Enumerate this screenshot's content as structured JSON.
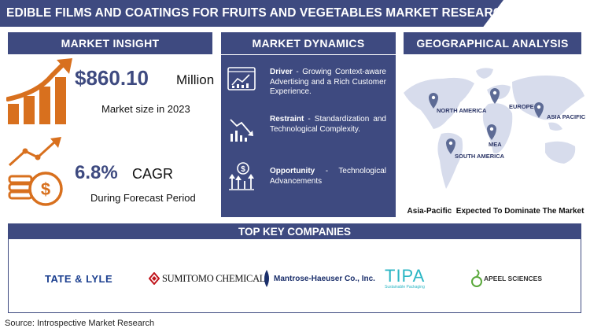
{
  "title": "EDIBLE FILMS AND COATINGS FOR FRUITS AND VEGETABLES MARKET RESEARCH REPORT",
  "insight": {
    "header": "MARKET INSIGHT",
    "market_value": "$860.10",
    "market_unit": "Million",
    "market_caption": "Market size in 2023",
    "cagr_value": "6.8%",
    "cagr_label": "CAGR",
    "cagr_caption": "During Forecast Period"
  },
  "dynamics": {
    "header": "MARKET DYNAMICS",
    "items": [
      {
        "label": "Driver",
        "text": " - Growing Context-aware Advertising and a Rich Customer Experience."
      },
      {
        "label": "Restraint",
        "text": " - Standardization and Technological Complexity."
      },
      {
        "label": "Opportunity",
        "text": " - Technological Advancements"
      }
    ]
  },
  "geo": {
    "header": "GEOGRAPHICAL ANALYSIS",
    "regions": [
      "NORTH AMERICA",
      "EUROPE",
      "ASIA PACIFIC",
      "MEA",
      "SOUTH AMERICA"
    ],
    "caption": "Asia-Pacific  Expected To Dominate The Market"
  },
  "companies": {
    "header": "TOP KEY COMPANIES",
    "logos": [
      "TATE & LYLE",
      "SUMITOMO CHEMICAL",
      "Mantrose-Haeuser Co., Inc.",
      "TIPA",
      "APEEL SCIENCES"
    ],
    "tipa_tagline": "Sustainable Packaging"
  },
  "source": "Source: Introspective Market Research",
  "colors": {
    "navy": "#3e4a80",
    "orange": "#d8701e",
    "map": "#d7dcec"
  }
}
